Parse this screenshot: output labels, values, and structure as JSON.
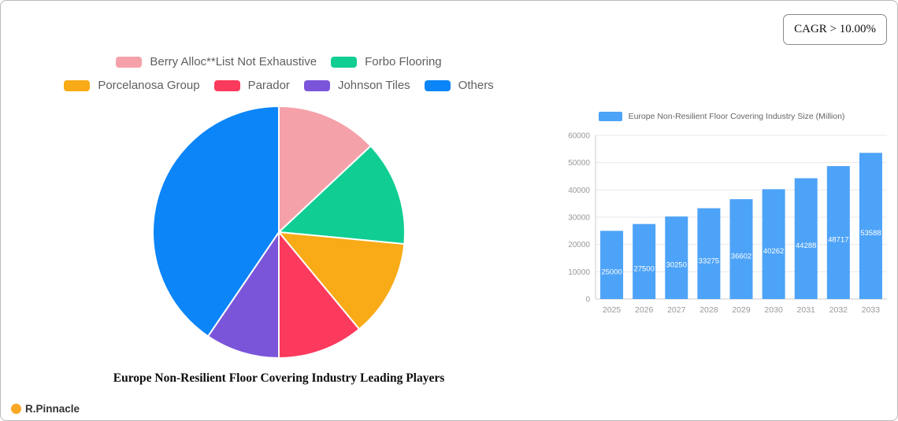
{
  "badge": {
    "label": "CAGR > 10.00%"
  },
  "logo": {
    "text": "R.Pinnacle"
  },
  "chart_data": [
    {
      "type": "pie",
      "title": "Europe Non-Resilient Floor Covering Industry Leading Players",
      "labels": [
        "Berry Alloc**List Not Exhaustive",
        "Forbo Flooring",
        "Porcelanosa Group",
        "Parador",
        "Johnson Tiles",
        "Others"
      ],
      "values": [
        13,
        13.5,
        12.5,
        11,
        9.5,
        40.5
      ],
      "colors": [
        "#f5a1a9",
        "#10ce93",
        "#f8ab17",
        "#fb3a5d",
        "#7a55d9",
        "#0b85f8"
      ],
      "legend_position": "top",
      "slice_border_color": "#ffffff"
    },
    {
      "type": "bar",
      "title": "Europe Non-Resilient Floor Covering Industry Size (Million)",
      "categories": [
        "2025",
        "2026",
        "2027",
        "2028",
        "2029",
        "2030",
        "2031",
        "2032",
        "2033"
      ],
      "values": [
        25000,
        27500,
        30250,
        33275,
        36602,
        40262,
        44288,
        48717,
        53588
      ],
      "yticks": [
        0,
        10000,
        20000,
        30000,
        40000,
        50000,
        60000
      ],
      "ylim": [
        0,
        60000
      ],
      "bar_color": "#4da3f7",
      "value_label_color": "#ffffff",
      "axis_text_color": "#999999",
      "grid": true,
      "legend_position": "top"
    }
  ]
}
